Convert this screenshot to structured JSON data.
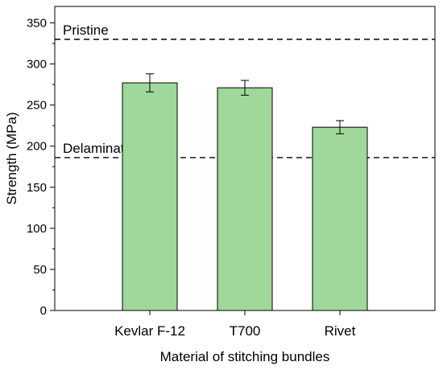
{
  "chart_data": {
    "type": "bar",
    "title": "",
    "xlabel": "Material of stitching bundles",
    "ylabel": "Strength (MPa)",
    "categories": [
      "Kevlar F-12",
      "T700",
      "Rivet"
    ],
    "values": [
      277,
      271,
      223
    ],
    "errors": [
      11,
      9,
      8
    ],
    "ylim": [
      0,
      370
    ],
    "yticks": [
      0,
      50,
      100,
      150,
      200,
      250,
      300,
      350
    ],
    "reference_lines": [
      {
        "label": "Pristine",
        "value": 330
      },
      {
        "label": "Delaminated",
        "value": 186
      }
    ],
    "bar_color": "#9fd89a",
    "bar_edge_color": "#000000",
    "grid": false
  }
}
